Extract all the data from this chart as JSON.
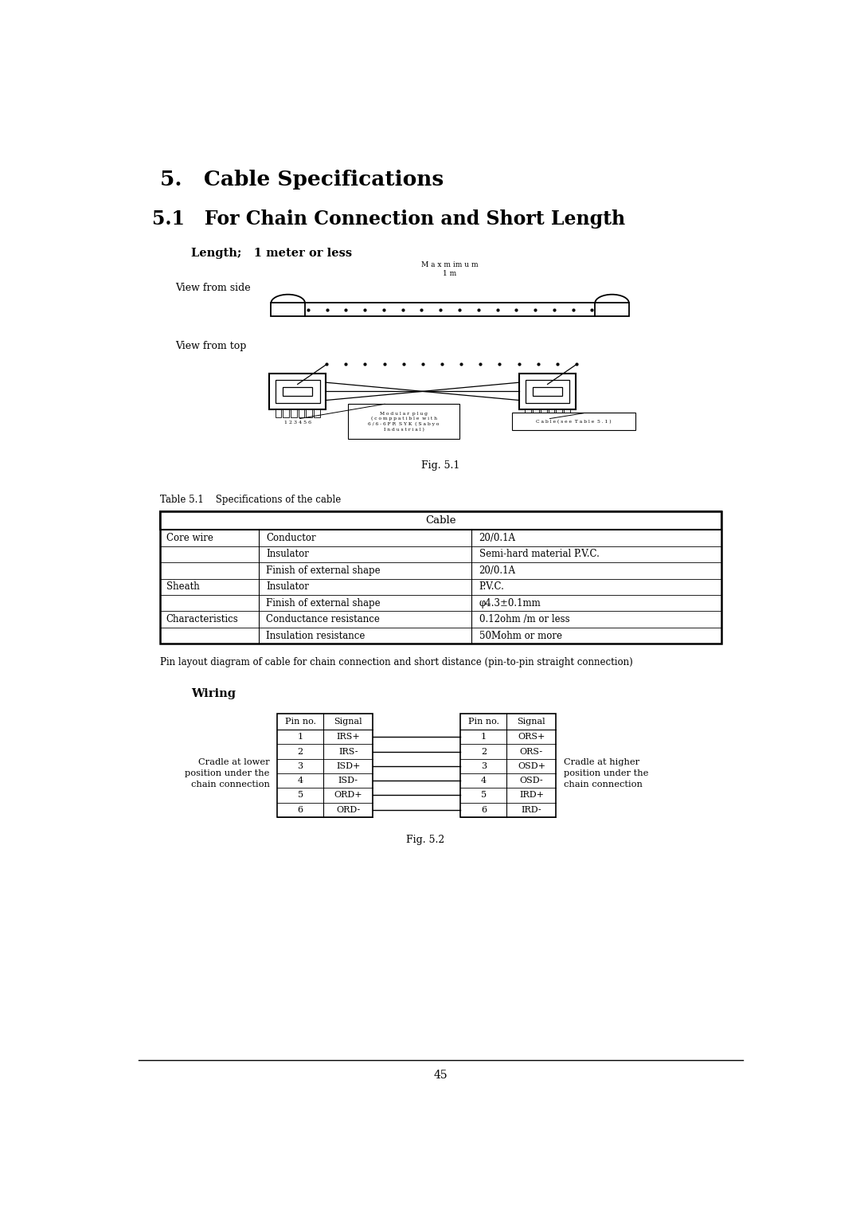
{
  "title1": "5.   Cable Specifications",
  "title2": "5.1   For Chain Connection and Short Length",
  "subtitle": "Length;   1 meter or less",
  "fig1_label": "Fig. 5.1",
  "fig2_label": "Fig. 5.2",
  "table_title": "Table 5.1    Specifications of the cable",
  "cable_header": "Cable",
  "table_rows": [
    [
      "Core wire",
      "Conductor",
      "20/0.1A"
    ],
    [
      "",
      "Insulator",
      "Semi-hard material P.V.C."
    ],
    [
      "",
      "Finish of external shape",
      "20/0.1A"
    ],
    [
      "Sheath",
      "Insulator",
      "P.V.C."
    ],
    [
      "",
      "Finish of external shape",
      "φ4.3±0.1mm"
    ],
    [
      "Characteristics",
      "Conductance resistance",
      "0.12ohm /m or less"
    ],
    [
      "",
      "Insulation resistance",
      "50Mohm or more"
    ]
  ],
  "pin_note": "Pin layout diagram of cable for chain connection and short distance (pin-to-pin straight connection)",
  "wiring_label": "Wiring",
  "left_table_header": [
    "Pin no.",
    "Signal"
  ],
  "right_table_header": [
    "Pin no.",
    "Signal"
  ],
  "left_pins": [
    [
      "1",
      "IRS+"
    ],
    [
      "2",
      "IRS-"
    ],
    [
      "3",
      "ISD+"
    ],
    [
      "4",
      "ISD-"
    ],
    [
      "5",
      "ORD+"
    ],
    [
      "6",
      "ORD-"
    ]
  ],
  "right_pins": [
    [
      "1",
      "ORS+"
    ],
    [
      "2",
      "ORS-"
    ],
    [
      "3",
      "OSD+"
    ],
    [
      "4",
      "OSD-"
    ],
    [
      "5",
      "IRD+"
    ],
    [
      "6",
      "IRD-"
    ]
  ],
  "left_label_line1": "Cradle at lower",
  "left_label_line2": "position under the",
  "left_label_line3": "chain connection",
  "right_label_line1": "Cradle at higher",
  "right_label_line2": "position under the",
  "right_label_line3": "chain connection",
  "view_side": "View from side",
  "view_top": "View from top",
  "max_label": "M a x m im u m\n1 m",
  "modular_label": "M o d u l a r  p l u g\n( c o m p p a t i b l e  w i t h\n6 / 6 - 6 F R  S Y K  ( S a b y o\nI n d u s t r i a l )",
  "cable_label": "C a b l e ( s e e  T a b l e  5 . 1 )",
  "pin_numbers": "1 2 3 4 5 6",
  "page_number": "45",
  "bg_color": "#ffffff",
  "text_color": "#000000"
}
